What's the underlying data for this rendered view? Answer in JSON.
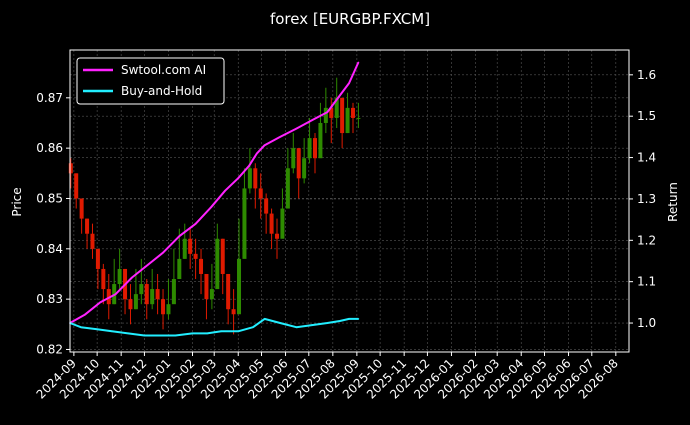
{
  "title": "forex [EURGBP.FXCM]",
  "chart_data": {
    "type": "line",
    "title": "forex [EURGBP.FXCM]",
    "xlabel": "",
    "ylabel": "Price",
    "y2label": "Return",
    "x_ticks": [
      "2024-09",
      "2024-10",
      "2024-11",
      "2024-12",
      "2025-01",
      "2025-02",
      "2025-03",
      "2025-04",
      "2025-05",
      "2025-06",
      "2025-07",
      "2025-08",
      "2025-09",
      "2025-10",
      "2025-11",
      "2025-12",
      "2026-01",
      "2026-02",
      "2026-03",
      "2026-04",
      "2026-05",
      "2026-06",
      "2026-07",
      "2026-08"
    ],
    "xlim": [
      "2024-08-27",
      "2026-08-18"
    ],
    "y_ticks": [
      "0.82",
      "0.83",
      "0.84",
      "0.85",
      "0.86",
      "0.87"
    ],
    "ylim": [
      0.8195,
      0.8795
    ],
    "y2_ticks": [
      "1.0",
      "1.1",
      "1.2",
      "1.3",
      "1.4",
      "1.5",
      "1.6"
    ],
    "y2lim": [
      0.93,
      1.66
    ],
    "grid": true,
    "legend": "top-left",
    "colors": {
      "background": "#000000",
      "grid": "#555555",
      "up_candle": "#2e8b00",
      "down_candle": "#e01a00",
      "swtool": "#ff22ff",
      "buyhold": "#22eeff"
    },
    "series": [
      {
        "name": "Swtool.com AI",
        "axis": "right",
        "x": [
          "2024-08-27",
          "2024-09-15",
          "2024-10-05",
          "2024-10-25",
          "2024-11-15",
          "2024-12-05",
          "2024-12-25",
          "2025-01-15",
          "2025-02-05",
          "2025-02-25",
          "2025-03-15",
          "2025-04-01",
          "2025-04-15",
          "2025-04-25",
          "2025-05-05",
          "2025-05-25",
          "2025-06-15",
          "2025-07-05",
          "2025-07-25",
          "2025-08-10",
          "2025-08-22",
          "2025-09-03"
        ],
        "values": [
          1.0,
          1.02,
          1.05,
          1.07,
          1.11,
          1.14,
          1.17,
          1.21,
          1.24,
          1.28,
          1.32,
          1.35,
          1.38,
          1.41,
          1.43,
          1.45,
          1.47,
          1.49,
          1.51,
          1.55,
          1.58,
          1.63
        ]
      },
      {
        "name": "Buy-and-Hold",
        "axis": "right",
        "x": [
          "2024-08-27",
          "2024-09-10",
          "2024-10-01",
          "2024-10-20",
          "2024-11-10",
          "2024-12-01",
          "2024-12-20",
          "2025-01-10",
          "2025-02-01",
          "2025-02-20",
          "2025-03-10",
          "2025-04-01",
          "2025-04-20",
          "2025-05-05",
          "2025-05-25",
          "2025-06-15",
          "2025-07-05",
          "2025-07-25",
          "2025-08-10",
          "2025-08-22",
          "2025-09-03"
        ],
        "values": [
          1.0,
          0.99,
          0.985,
          0.98,
          0.975,
          0.97,
          0.97,
          0.97,
          0.975,
          0.975,
          0.98,
          0.98,
          0.99,
          1.01,
          1.0,
          0.99,
          0.995,
          1.0,
          1.005,
          1.01,
          1.01
        ]
      },
      {
        "name": "",
        "kind": "candlestick",
        "axis": "left",
        "x": [
          "2024-08-28",
          "2024-09-04",
          "2024-09-11",
          "2024-09-18",
          "2024-09-25",
          "2024-10-02",
          "2024-10-09",
          "2024-10-16",
          "2024-10-23",
          "2024-10-30",
          "2024-11-06",
          "2024-11-13",
          "2024-11-20",
          "2024-11-27",
          "2024-12-04",
          "2024-12-11",
          "2024-12-18",
          "2024-12-25",
          "2025-01-01",
          "2025-01-08",
          "2025-01-15",
          "2025-01-22",
          "2025-01-29",
          "2025-02-05",
          "2025-02-12",
          "2025-02-19",
          "2025-02-26",
          "2025-03-05",
          "2025-03-12",
          "2025-03-19",
          "2025-03-26",
          "2025-04-02",
          "2025-04-09",
          "2025-04-16",
          "2025-04-23",
          "2025-04-30",
          "2025-05-07",
          "2025-05-14",
          "2025-05-21",
          "2025-05-28",
          "2025-06-04",
          "2025-06-11",
          "2025-06-18",
          "2025-06-25",
          "2025-07-02",
          "2025-07-09",
          "2025-07-16",
          "2025-07-23",
          "2025-07-30",
          "2025-08-06",
          "2025-08-13",
          "2025-08-20",
          "2025-08-27",
          "2025-09-03"
        ],
        "close": [
          0.855,
          0.85,
          0.846,
          0.843,
          0.84,
          0.836,
          0.832,
          0.829,
          0.833,
          0.836,
          0.83,
          0.828,
          0.831,
          0.833,
          0.829,
          0.832,
          0.83,
          0.827,
          0.829,
          0.834,
          0.838,
          0.842,
          0.839,
          0.838,
          0.835,
          0.83,
          0.832,
          0.842,
          0.835,
          0.828,
          0.827,
          0.838,
          0.852,
          0.856,
          0.852,
          0.85,
          0.847,
          0.843,
          0.842,
          0.848,
          0.856,
          0.86,
          0.854,
          0.858,
          0.862,
          0.858,
          0.865,
          0.868,
          0.866,
          0.87,
          0.863,
          0.868,
          0.866,
          0.866
        ],
        "high": [
          0.858,
          0.855,
          0.85,
          0.846,
          0.845,
          0.84,
          0.837,
          0.835,
          0.838,
          0.84,
          0.836,
          0.833,
          0.836,
          0.838,
          0.834,
          0.836,
          0.835,
          0.832,
          0.834,
          0.84,
          0.844,
          0.845,
          0.844,
          0.842,
          0.84,
          0.835,
          0.837,
          0.845,
          0.842,
          0.835,
          0.832,
          0.846,
          0.856,
          0.86,
          0.857,
          0.855,
          0.851,
          0.848,
          0.846,
          0.852,
          0.86,
          0.863,
          0.859,
          0.862,
          0.866,
          0.863,
          0.869,
          0.872,
          0.87,
          0.874,
          0.868,
          0.871,
          0.869,
          0.869
        ],
        "low": [
          0.852,
          0.848,
          0.843,
          0.84,
          0.838,
          0.832,
          0.829,
          0.826,
          0.829,
          0.832,
          0.827,
          0.825,
          0.828,
          0.829,
          0.826,
          0.828,
          0.827,
          0.824,
          0.826,
          0.83,
          0.834,
          0.838,
          0.836,
          0.834,
          0.831,
          0.826,
          0.828,
          0.835,
          0.831,
          0.825,
          0.823,
          0.829,
          0.846,
          0.851,
          0.848,
          0.846,
          0.843,
          0.84,
          0.838,
          0.844,
          0.851,
          0.855,
          0.85,
          0.853,
          0.857,
          0.855,
          0.86,
          0.863,
          0.861,
          0.864,
          0.86,
          0.863,
          0.863,
          0.864
        ]
      }
    ]
  }
}
